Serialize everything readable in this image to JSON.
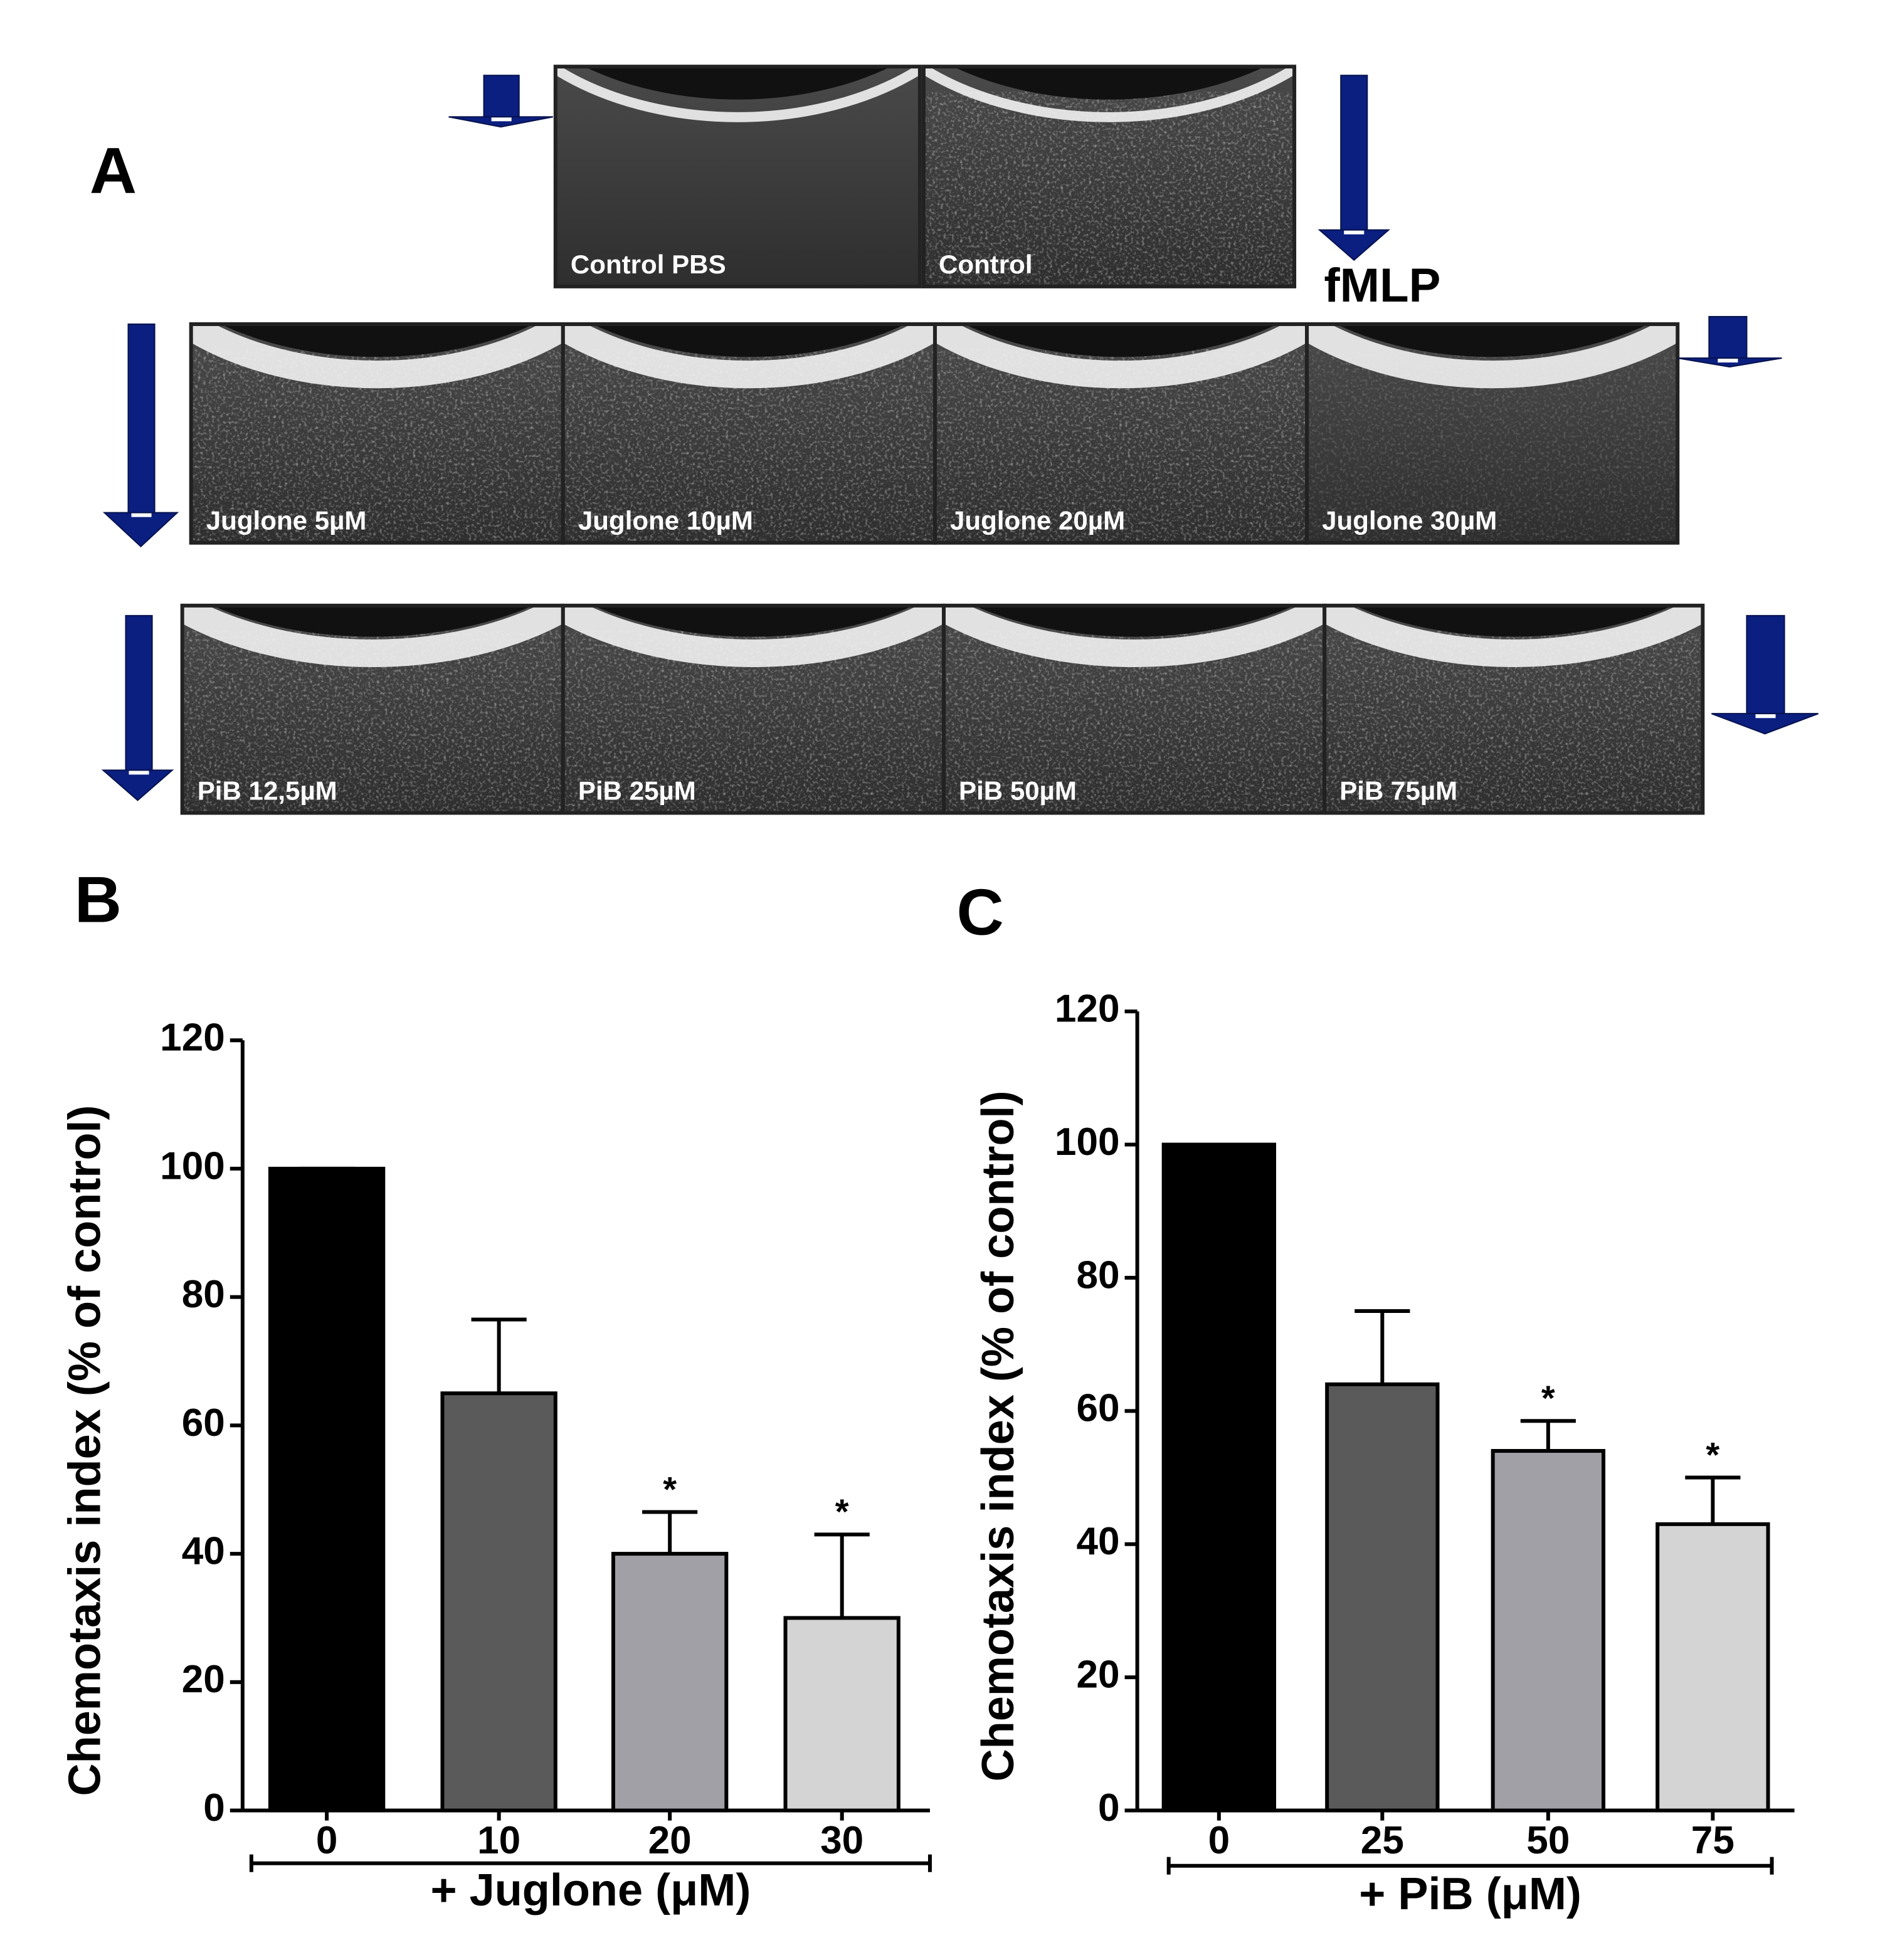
{
  "panel_a": {
    "label": "A",
    "stimulus": "fMLP",
    "images": [
      {
        "caption": "Control PBS"
      },
      {
        "caption": "Control"
      },
      {
        "caption": "Juglone 5µM"
      },
      {
        "caption": "Juglone 10µM"
      },
      {
        "caption": "Juglone 20µM"
      },
      {
        "caption": "Juglone 30µM"
      },
      {
        "caption": "PiB 12,5µM"
      },
      {
        "caption": "PiB 25µM"
      },
      {
        "caption": "PiB 50µM"
      },
      {
        "caption": "PiB 75µM"
      }
    ]
  },
  "chart_data": [
    {
      "type": "bar",
      "panel_label": "B",
      "y_label": "Chemotaxis index (% of control)",
      "x_label": "+ Juglone (μM)",
      "categories": [
        "0",
        "10",
        "20",
        "30"
      ],
      "values": [
        100,
        65,
        40,
        30
      ],
      "errors": [
        0,
        11.5,
        6.5,
        13
      ],
      "significance": [
        null,
        null,
        "*",
        "*"
      ],
      "colors": [
        "#000000",
        "#5a5a5a",
        "#a0a0a6",
        "#d4d4d4"
      ],
      "ylim": [
        0,
        120
      ],
      "yticks": [
        0,
        20,
        40,
        60,
        80,
        100,
        120
      ]
    },
    {
      "type": "bar",
      "panel_label": "C",
      "y_label": "Chemotaxis index (% of control)",
      "x_label": "+ PiB (μM)",
      "categories": [
        "0",
        "25",
        "50",
        "75"
      ],
      "values": [
        100,
        64,
        54,
        43
      ],
      "errors": [
        0,
        11,
        4.5,
        7
      ],
      "significance": [
        null,
        null,
        "*",
        "*"
      ],
      "colors": [
        "#000000",
        "#5a5a5a",
        "#a0a0a6",
        "#d4d4d4"
      ],
      "ylim": [
        0,
        120
      ],
      "yticks": [
        0,
        20,
        40,
        60,
        80,
        100,
        120
      ]
    }
  ]
}
